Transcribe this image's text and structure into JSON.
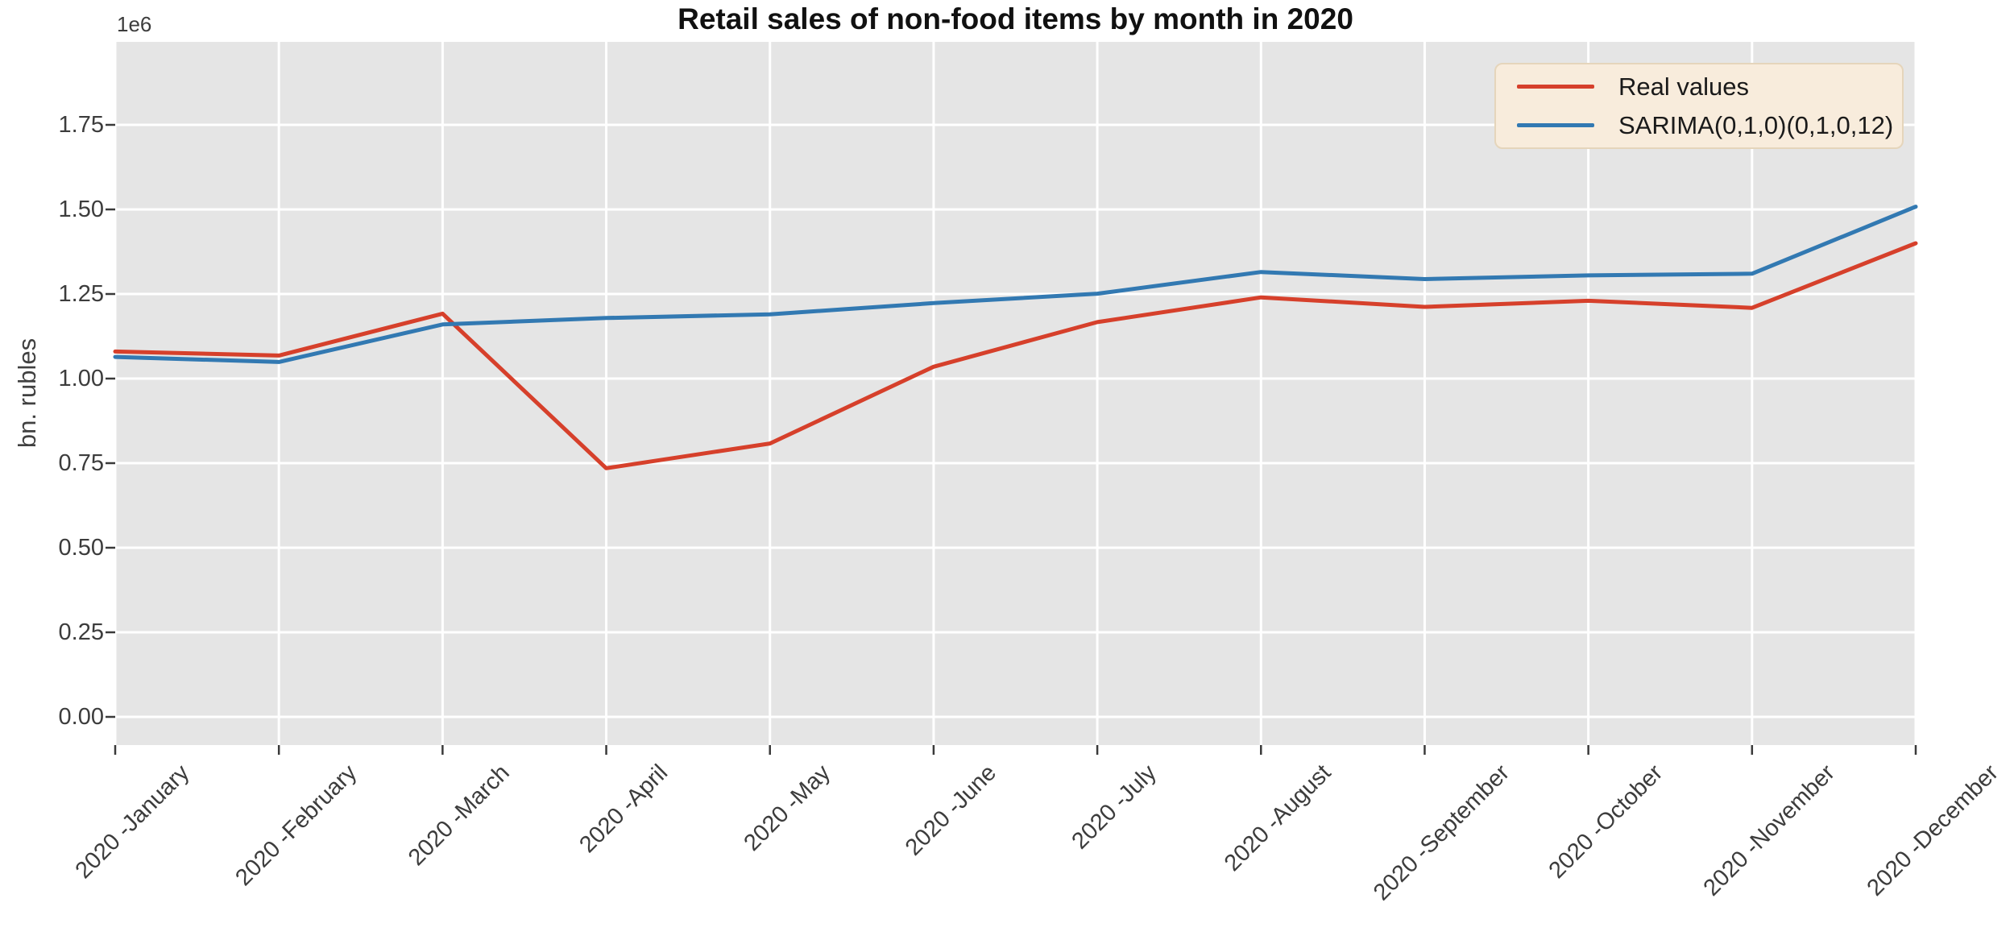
{
  "title": "Retail sales of non-food items by month in 2020",
  "y_axis": {
    "label": "bn. rubles",
    "offset_label": "1e6",
    "tick_labels": [
      "0.00",
      "0.25",
      "0.50",
      "0.75",
      "1.00",
      "1.25",
      "1.50",
      "1.75"
    ]
  },
  "x_axis": {
    "tick_labels": [
      "2020 -January",
      "2020 -February",
      "2020 -March",
      "2020 -April",
      "2020 -May",
      "2020 -June",
      "2020 -July",
      "2020 -August",
      "2020 -September",
      "2020 -October",
      "2020 -November",
      "2020 -December"
    ]
  },
  "legend": {
    "position": "upper right",
    "items": [
      {
        "label": "Real values",
        "color": "#d6402b"
      },
      {
        "label": "SARIMA(0,1,0)(0,1,0,12)",
        "color": "#3279b2"
      }
    ]
  },
  "colors": {
    "figure_bg": "#ffffff",
    "plot_bg": "#e5e5e5",
    "grid": "#ffffff",
    "tick_mark": "#3a3a3a",
    "tick_text": "#3c3c3c",
    "title_text": "#111111",
    "legend_bg": "#f8ecdc",
    "legend_border": "#e5d5bb",
    "real": "#d6402b",
    "sarima": "#3279b2"
  },
  "chart_data": {
    "type": "line",
    "title": "Retail sales of non-food items by month in 2020",
    "xlabel": "",
    "ylabel": "bn. rubles",
    "scale_note": "1e6",
    "grid": true,
    "legend_position": "upper right",
    "categories": [
      "2020 -January",
      "2020 -February",
      "2020 -March",
      "2020 -April",
      "2020 -May",
      "2020 -June",
      "2020 -July",
      "2020 -August",
      "2020 -September",
      "2020 -October",
      "2020 -November",
      "2020 -December"
    ],
    "series": [
      {
        "name": "Real values",
        "color": "#d6402b",
        "values": [
          1080000,
          1068000,
          1192000,
          735000,
          808000,
          1035000,
          1167000,
          1240000,
          1212000,
          1230000,
          1209000,
          1400000
        ]
      },
      {
        "name": "SARIMA(0,1,0)(0,1,0,12)",
        "color": "#3279b2",
        "values": [
          1064000,
          1049000,
          1160000,
          1179000,
          1190000,
          1223000,
          1251000,
          1315000,
          1294000,
          1305000,
          1310000,
          1508000
        ]
      }
    ],
    "y_ticks": [
      0,
      250000,
      500000,
      750000,
      1000000,
      1250000,
      1500000,
      1750000
    ],
    "ylim": [
      -83000,
      1995000
    ]
  }
}
